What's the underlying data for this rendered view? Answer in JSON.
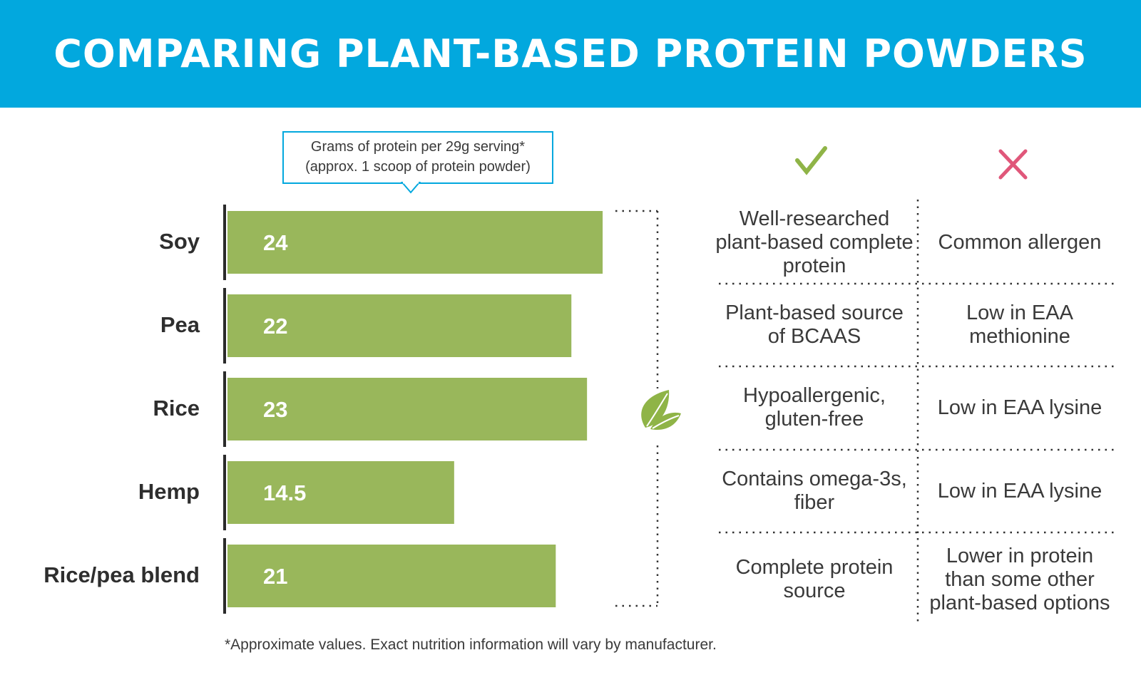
{
  "title": "COMPARING PLANT-BASED PROTEIN POWDERS",
  "callout": {
    "line1": "Grams of protein per 29g serving*",
    "line2": "(approx. 1 scoop of protein powder)"
  },
  "colors": {
    "banner": "#02a8de",
    "bar": "#99b75b",
    "check": "#8fb447",
    "cross": "#e0577a"
  },
  "icons": {
    "pros": "check-icon",
    "cons": "cross-icon",
    "divider": "leaf-icon"
  },
  "chart_data": {
    "type": "bar",
    "orientation": "horizontal",
    "categories": [
      "Soy",
      "Pea",
      "Rice",
      "Hemp",
      "Rice/pea blend"
    ],
    "values": [
      24,
      22,
      23,
      14.5,
      21
    ],
    "value_labels": [
      "24",
      "22",
      "23",
      "14.5",
      "21"
    ]
  },
  "comparison": [
    {
      "pro": "Well-researched plant-based complete protein",
      "con": "Common allergen"
    },
    {
      "pro": "Plant-based source of BCAAS",
      "con": "Low in EAA methionine"
    },
    {
      "pro": "Hypoallergenic, gluten-free",
      "con": "Low in EAA lysine"
    },
    {
      "pro": "Contains omega-3s, fiber",
      "con": "Low in EAA lysine"
    },
    {
      "pro": "Complete protein source",
      "con": "Lower in protein than some other plant-based options"
    }
  ],
  "footnote": "*Approximate values. Exact nutrition information will vary by manufacturer."
}
